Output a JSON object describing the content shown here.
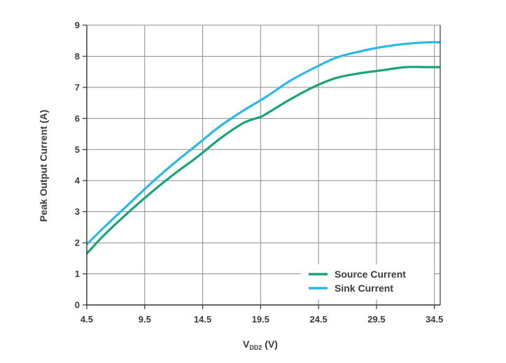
{
  "chart_data": {
    "type": "line",
    "xlabel_main": "V",
    "xlabel_sub": "DD2",
    "xlabel_unit": " (V)",
    "ylabel": "Peak Output Current (A)",
    "xlim": [
      4.5,
      35
    ],
    "ylim": [
      0,
      9
    ],
    "x_ticks": [
      "4.5",
      "9.5",
      "14.5",
      "19.5",
      "24.5",
      "29.5",
      "34.5"
    ],
    "y_ticks": [
      "0",
      "1",
      "2",
      "3",
      "4",
      "5",
      "6",
      "7",
      "8",
      "9"
    ],
    "grid": true,
    "legend_position": "bottom-right",
    "series": [
      {
        "name": "Source Current",
        "color": "#1aa37a",
        "x": [
          4.5,
          6,
          8,
          10,
          12,
          14,
          16,
          18,
          19.5,
          20,
          22,
          24,
          26,
          28,
          30,
          32,
          34,
          35
        ],
        "y": [
          1.65,
          2.25,
          2.95,
          3.6,
          4.2,
          4.75,
          5.35,
          5.85,
          6.05,
          6.15,
          6.6,
          7.0,
          7.3,
          7.45,
          7.55,
          7.65,
          7.65,
          7.65
        ]
      },
      {
        "name": "Sink Current",
        "color": "#2ab8e6",
        "x": [
          4.5,
          6,
          8,
          10,
          12,
          14,
          16,
          18,
          20,
          22,
          24,
          26,
          28,
          30,
          32,
          34,
          35
        ],
        "y": [
          1.95,
          2.5,
          3.2,
          3.9,
          4.55,
          5.15,
          5.75,
          6.25,
          6.7,
          7.2,
          7.6,
          7.95,
          8.15,
          8.3,
          8.4,
          8.45,
          8.45
        ]
      }
    ]
  }
}
